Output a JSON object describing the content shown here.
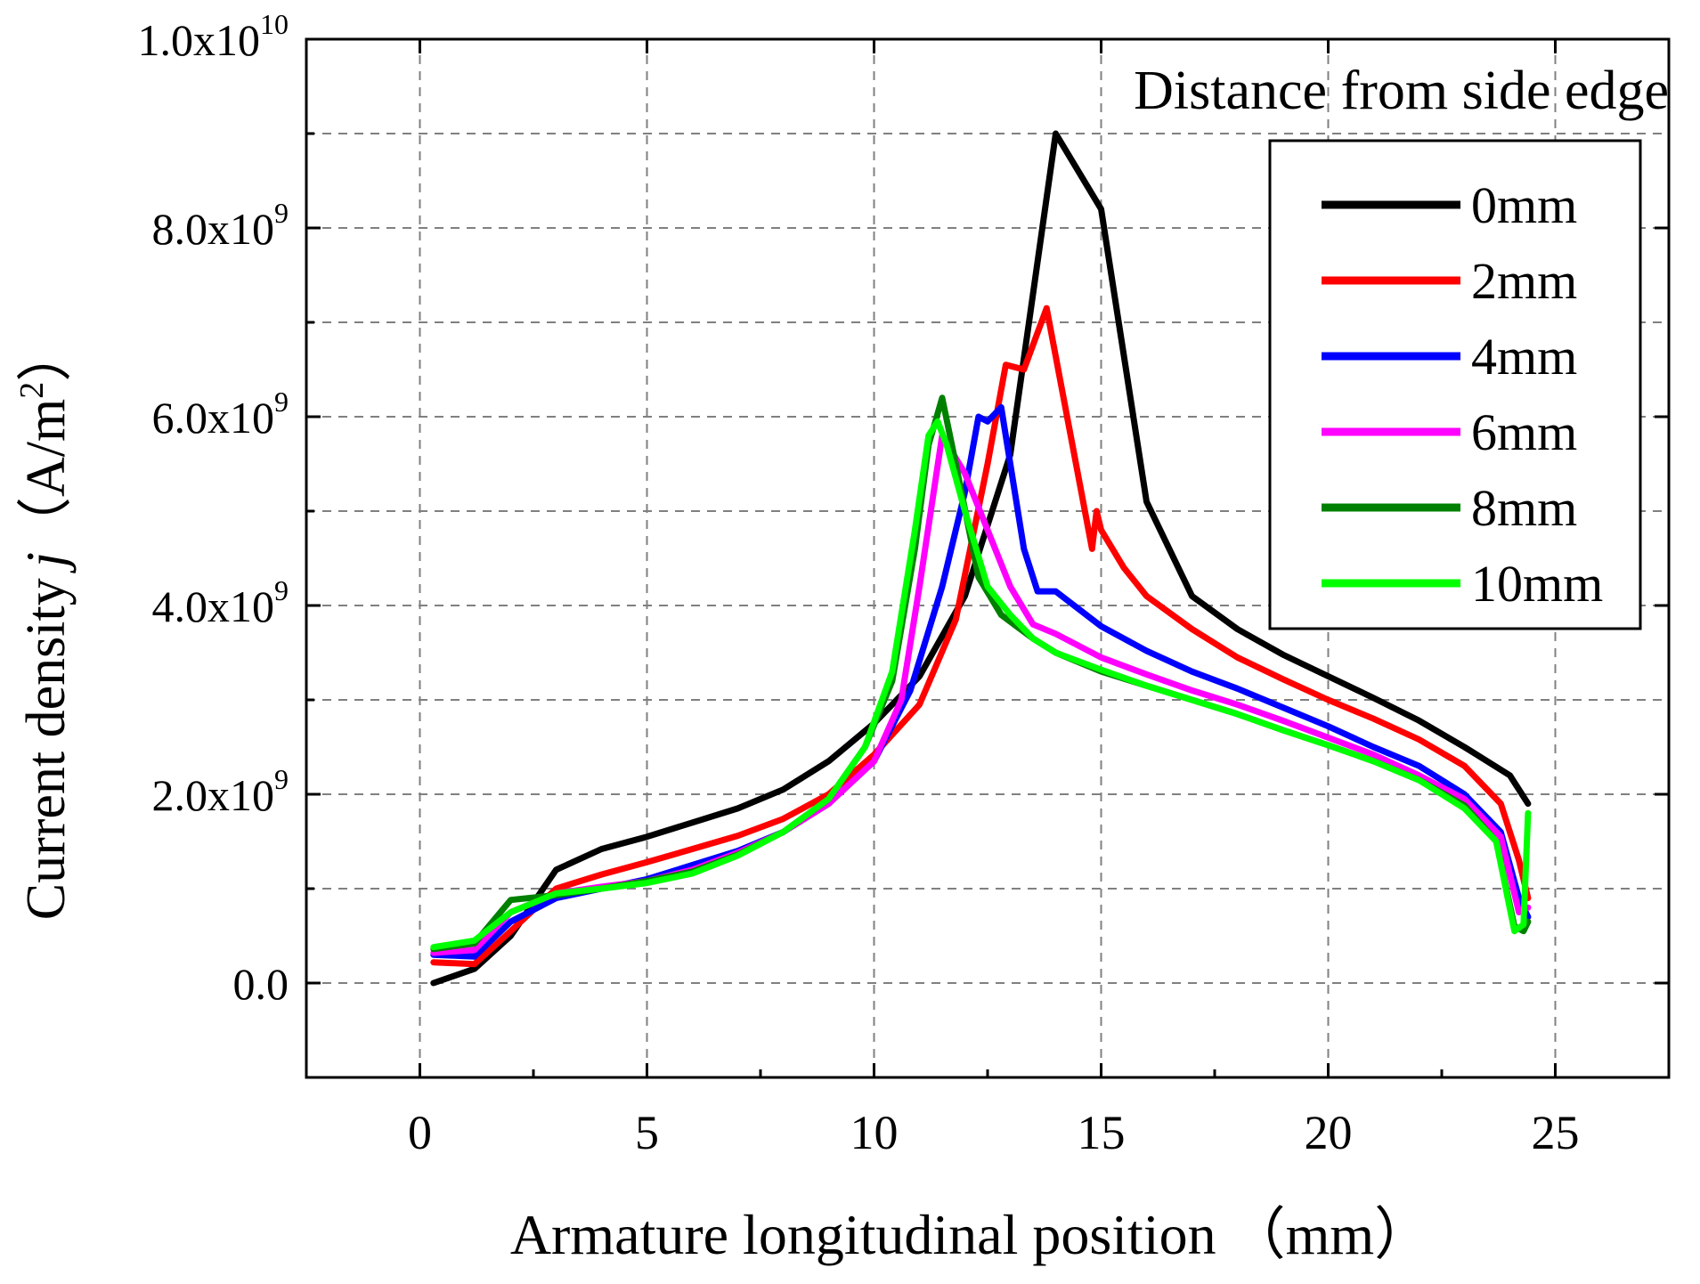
{
  "chart_data": {
    "type": "line",
    "xlabel": "Armature longitudinal position",
    "xlabel_unit": "mm",
    "ylabel_prefix": "Current density",
    "ylabel_symbol": "j",
    "ylabel_unit_text": "A/m",
    "ylabel_unit_power": "2",
    "xlim": [
      -2.5,
      27.5
    ],
    "ylim": [
      -1000000000.0,
      10000000000.0
    ],
    "x_ticks": [
      0,
      5,
      10,
      15,
      20,
      25
    ],
    "x_tick_labels": [
      "0",
      "5",
      "10",
      "15",
      "20",
      "25"
    ],
    "y_ticks": [
      0,
      2000000000.0,
      4000000000.0,
      6000000000.0,
      8000000000.0,
      10000000000.0
    ],
    "y_tick_labels": [
      {
        "mantissa": "0.0",
        "exponent": ""
      },
      {
        "mantissa": "2.0x10",
        "exponent": "9"
      },
      {
        "mantissa": "4.0x10",
        "exponent": "9"
      },
      {
        "mantissa": "6.0x10",
        "exponent": "9"
      },
      {
        "mantissa": "8.0x10",
        "exponent": "9"
      },
      {
        "mantissa": "1.0x10",
        "exponent": "10"
      }
    ],
    "grid": true,
    "legend_title": "Distance from side edge",
    "legend_position": "top-right",
    "series": [
      {
        "name": "0mm",
        "color": "#000000",
        "x": [
          0.3,
          1.2,
          2.0,
          3.0,
          4.0,
          5.0,
          6.0,
          7.0,
          8.0,
          9.0,
          10.0,
          11.0,
          12.0,
          13.0,
          14.0,
          15.0,
          16.0,
          17.0,
          18.0,
          19.0,
          20.0,
          21.0,
          22.0,
          23.0,
          24.0,
          24.4
        ],
        "y": [
          0.0,
          150000000.0,
          500000000.0,
          1200000000.0,
          1420000000.0,
          1550000000.0,
          1700000000.0,
          1850000000.0,
          2050000000.0,
          2350000000.0,
          2750000000.0,
          3250000000.0,
          4100000000.0,
          5600000000.0,
          9000000000.0,
          8200000000.0,
          5100000000.0,
          4100000000.0,
          3750000000.0,
          3480000000.0,
          3250000000.0,
          3020000000.0,
          2780000000.0,
          2500000000.0,
          2200000000.0,
          1900000000.0
        ]
      },
      {
        "name": "2mm",
        "color": "#ff0000",
        "x": [
          0.3,
          1.2,
          2.0,
          3.0,
          4.0,
          5.0,
          6.0,
          7.0,
          8.0,
          9.0,
          10.0,
          11.0,
          11.8,
          12.5,
          12.9,
          13.3,
          13.8,
          14.8,
          14.9,
          15.0,
          15.5,
          16.0,
          17.0,
          18.0,
          19.0,
          20.0,
          21.0,
          22.0,
          23.0,
          23.8,
          24.2,
          24.4
        ],
        "y": [
          220000000.0,
          200000000.0,
          550000000.0,
          1000000000.0,
          1150000000.0,
          1280000000.0,
          1420000000.0,
          1560000000.0,
          1740000000.0,
          2000000000.0,
          2420000000.0,
          2950000000.0,
          3850000000.0,
          5500000000.0,
          6550000000.0,
          6500000000.0,
          7150000000.0,
          4600000000.0,
          5000000000.0,
          4800000000.0,
          4400000000.0,
          4100000000.0,
          3750000000.0,
          3450000000.0,
          3220000000.0,
          3000000000.0,
          2800000000.0,
          2580000000.0,
          2300000000.0,
          1900000000.0,
          1300000000.0,
          900000000.0
        ]
      },
      {
        "name": "4mm",
        "color": "#0000ff",
        "x": [
          0.3,
          1.2,
          2.0,
          3.0,
          4.0,
          5.0,
          6.0,
          7.0,
          8.0,
          9.0,
          10.0,
          10.8,
          11.5,
          12.0,
          12.3,
          12.5,
          12.8,
          13.3,
          13.6,
          14.0,
          15.0,
          16.0,
          17.0,
          18.0,
          19.0,
          20.0,
          21.0,
          22.0,
          23.0,
          23.8,
          24.2,
          24.4
        ],
        "y": [
          300000000.0,
          280000000.0,
          650000000.0,
          900000000.0,
          1000000000.0,
          1100000000.0,
          1250000000.0,
          1400000000.0,
          1600000000.0,
          1900000000.0,
          2350000000.0,
          3100000000.0,
          4200000000.0,
          5200000000.0,
          6000000000.0,
          5950000000.0,
          6100000000.0,
          4600000000.0,
          4150000000.0,
          4150000000.0,
          3780000000.0,
          3520000000.0,
          3300000000.0,
          3120000000.0,
          2920000000.0,
          2720000000.0,
          2500000000.0,
          2300000000.0,
          2000000000.0,
          1600000000.0,
          900000000.0,
          700000000.0
        ]
      },
      {
        "name": "6mm",
        "color": "#ff00ff",
        "x": [
          0.3,
          1.2,
          2.0,
          3.0,
          4.0,
          5.0,
          6.0,
          7.0,
          8.0,
          9.0,
          10.0,
          10.6,
          11.0,
          11.5,
          12.0,
          12.5,
          13.0,
          13.5,
          14.0,
          15.0,
          16.0,
          17.0,
          18.0,
          19.0,
          20.0,
          21.0,
          22.0,
          23.0,
          23.8,
          24.2,
          24.4
        ],
        "y": [
          320000000.0,
          350000000.0,
          750000000.0,
          950000000.0,
          1020000000.0,
          1080000000.0,
          1200000000.0,
          1380000000.0,
          1600000000.0,
          1900000000.0,
          2350000000.0,
          3000000000.0,
          4200000000.0,
          5800000000.0,
          5400000000.0,
          4800000000.0,
          4200000000.0,
          3800000000.0,
          3700000000.0,
          3450000000.0,
          3270000000.0,
          3100000000.0,
          2950000000.0,
          2780000000.0,
          2600000000.0,
          2420000000.0,
          2200000000.0,
          1950000000.0,
          1550000000.0,
          750000000.0,
          800000000.0
        ]
      },
      {
        "name": "8mm",
        "color": "#008000",
        "x": [
          0.3,
          1.2,
          2.0,
          3.0,
          4.0,
          5.0,
          6.0,
          7.0,
          8.0,
          9.0,
          9.8,
          10.4,
          10.9,
          11.2,
          11.5,
          11.8,
          12.3,
          12.8,
          13.5,
          14.0,
          15.0,
          16.0,
          17.0,
          18.0,
          19.0,
          20.0,
          21.0,
          22.0,
          23.0,
          23.7,
          24.1,
          24.3,
          24.4
        ],
        "y": [
          360000000.0,
          420000000.0,
          880000000.0,
          930000000.0,
          1000000000.0,
          1080000000.0,
          1180000000.0,
          1360000000.0,
          1600000000.0,
          1950000000.0,
          2500000000.0,
          3200000000.0,
          4600000000.0,
          5700000000.0,
          6200000000.0,
          5500000000.0,
          4300000000.0,
          3900000000.0,
          3650000000.0,
          3500000000.0,
          3300000000.0,
          3150000000.0,
          3000000000.0,
          2850000000.0,
          2680000000.0,
          2520000000.0,
          2350000000.0,
          2150000000.0,
          1880000000.0,
          1500000000.0,
          600000000.0,
          550000000.0,
          650000000.0
        ]
      },
      {
        "name": "10mm",
        "color": "#00ff00",
        "x": [
          0.3,
          1.2,
          2.0,
          3.0,
          4.0,
          5.0,
          6.0,
          7.0,
          8.0,
          9.0,
          9.8,
          10.4,
          10.9,
          11.2,
          11.4,
          11.6,
          12.0,
          12.5,
          13.0,
          13.5,
          14.0,
          15.0,
          16.0,
          17.0,
          18.0,
          19.0,
          20.0,
          21.0,
          22.0,
          23.0,
          23.7,
          24.1,
          24.3,
          24.4
        ],
        "y": [
          380000000.0,
          450000000.0,
          750000000.0,
          950000000.0,
          1000000000.0,
          1060000000.0,
          1160000000.0,
          1350000000.0,
          1600000000.0,
          1950000000.0,
          2500000000.0,
          3300000000.0,
          4800000000.0,
          5800000000.0,
          5950000000.0,
          5700000000.0,
          5000000000.0,
          4200000000.0,
          3900000000.0,
          3650000000.0,
          3500000000.0,
          3320000000.0,
          3150000000.0,
          3000000000.0,
          2850000000.0,
          2680000000.0,
          2520000000.0,
          2350000000.0,
          2150000000.0,
          1850000000.0,
          1500000000.0,
          550000000.0,
          620000000.0,
          1800000000.0
        ]
      }
    ]
  }
}
